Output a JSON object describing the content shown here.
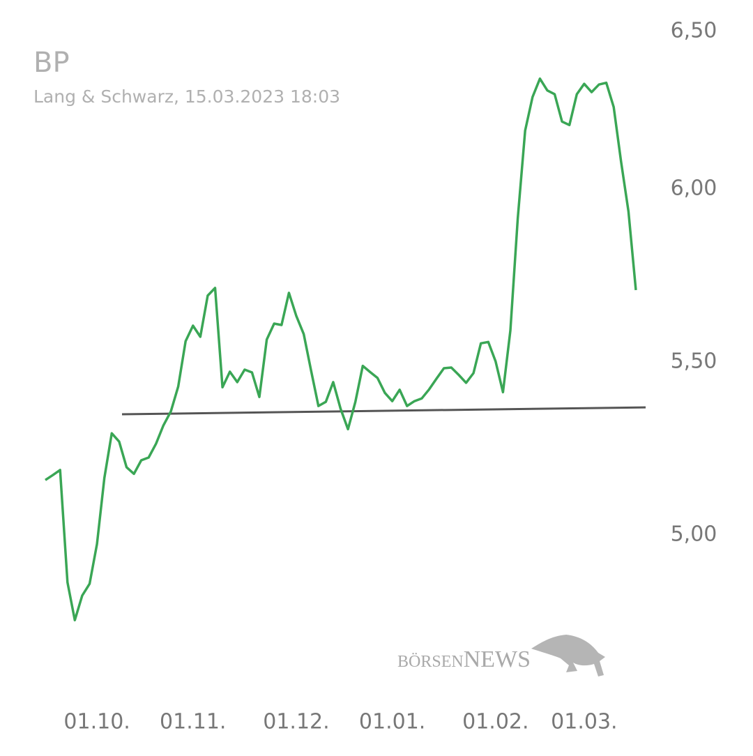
{
  "chart_data": {
    "type": "line",
    "title": "BP",
    "subtitle": "Lang & Schwarz, 15.03.2023 18:03",
    "logo": "börsenNEWS",
    "categories": [
      null,
      null,
      null,
      null,
      null,
      null,
      null,
      "01.10.",
      null,
      null,
      null,
      null,
      null,
      null,
      null,
      null,
      null,
      null,
      null,
      null,
      "01.11.",
      null,
      null,
      null,
      null,
      null,
      null,
      null,
      null,
      null,
      null,
      null,
      null,
      null,
      "01.12.",
      null,
      null,
      null,
      null,
      null,
      null,
      null,
      null,
      null,
      null,
      null,
      null,
      "01.01.",
      null,
      null,
      null,
      null,
      null,
      null,
      null,
      null,
      null,
      null,
      null,
      null,
      null,
      "01.02.",
      null,
      null,
      null,
      null,
      null,
      null,
      null,
      null,
      null,
      null,
      null,
      "01.03.",
      null,
      null,
      null,
      null,
      null,
      null,
      null
    ],
    "series": [
      {
        "color": "#3aa655",
        "values": [
          5.159,
          5.173,
          5.188,
          4.863,
          4.754,
          4.825,
          4.859,
          4.974,
          5.165,
          5.294,
          5.27,
          5.196,
          5.177,
          5.216,
          5.224,
          5.264,
          5.317,
          5.357,
          5.429,
          5.56,
          5.605,
          5.573,
          5.692,
          5.714,
          5.427,
          5.472,
          5.442,
          5.478,
          5.47,
          5.399,
          5.565,
          5.611,
          5.607,
          5.7,
          5.633,
          5.581,
          5.476,
          5.373,
          5.385,
          5.442,
          5.365,
          5.306,
          5.385,
          5.489,
          5.471,
          5.454,
          5.411,
          5.387,
          5.42,
          5.373,
          5.387,
          5.395,
          5.421,
          5.452,
          5.482,
          5.484,
          5.463,
          5.44,
          5.468,
          5.554,
          5.558,
          5.502,
          5.413,
          5.591,
          5.915,
          6.169,
          6.266,
          6.319,
          6.285,
          6.274,
          6.195,
          6.185,
          6.274,
          6.304,
          6.28,
          6.302,
          6.307,
          6.237,
          6.079,
          5.935,
          5.708
        ]
      }
    ],
    "reference_line": {
      "value_start": 5.349,
      "value_end": 5.369,
      "color": "#555555"
    },
    "ylim": [
      4.7,
      6.5
    ],
    "yticks": [
      {
        "value": 5.0,
        "label": "5,00"
      },
      {
        "value": 5.5,
        "label": "5,50"
      },
      {
        "value": 6.0,
        "label": "6,00"
      },
      {
        "value": 6.5,
        "label": "6,50"
      }
    ],
    "grid": false
  }
}
